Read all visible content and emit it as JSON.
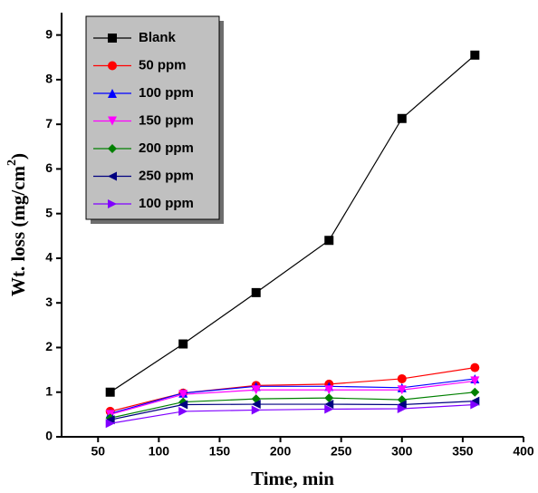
{
  "chart_data": {
    "type": "line",
    "x_label": "Time, min",
    "y_label": [
      "Wt. loss (mg/cm",
      "2",
      ")"
    ],
    "x": [
      60,
      120,
      180,
      240,
      300,
      360
    ],
    "series": [
      {
        "name": "Blank",
        "color": "#000000",
        "marker": "square",
        "values": [
          1.0,
          2.08,
          3.23,
          4.4,
          7.13,
          8.55
        ]
      },
      {
        "name": "50 ppm",
        "color": "#ff0000",
        "marker": "circle",
        "values": [
          0.57,
          0.98,
          1.15,
          1.18,
          1.3,
          1.55
        ]
      },
      {
        "name": "100 ppm",
        "color": "#0000ff",
        "marker": "triangle-up",
        "values": [
          0.52,
          0.98,
          1.13,
          1.13,
          1.1,
          1.3
        ]
      },
      {
        "name": "150 ppm",
        "color": "#ff00ff",
        "marker": "triangle-down",
        "values": [
          0.5,
          0.95,
          1.05,
          1.05,
          1.05,
          1.25
        ]
      },
      {
        "name": "200 ppm",
        "color": "#008000",
        "marker": "diamond",
        "values": [
          0.42,
          0.78,
          0.85,
          0.87,
          0.83,
          1.0
        ]
      },
      {
        "name": "250 ppm",
        "color": "#000080",
        "marker": "triangle-left",
        "values": [
          0.38,
          0.72,
          0.73,
          0.73,
          0.72,
          0.8
        ]
      },
      {
        "name": "100 ppm",
        "color": "#8000ff",
        "marker": "triangle-right",
        "values": [
          0.3,
          0.57,
          0.6,
          0.62,
          0.63,
          0.72
        ]
      }
    ],
    "xlim": [
      20,
      400
    ],
    "xticks": [
      50,
      100,
      150,
      200,
      250,
      300,
      350,
      400
    ],
    "ylim": [
      0,
      9.5
    ],
    "yticks": [
      0,
      1,
      2,
      3,
      4,
      5,
      6,
      7,
      8,
      9
    ],
    "legend": "top-left"
  }
}
